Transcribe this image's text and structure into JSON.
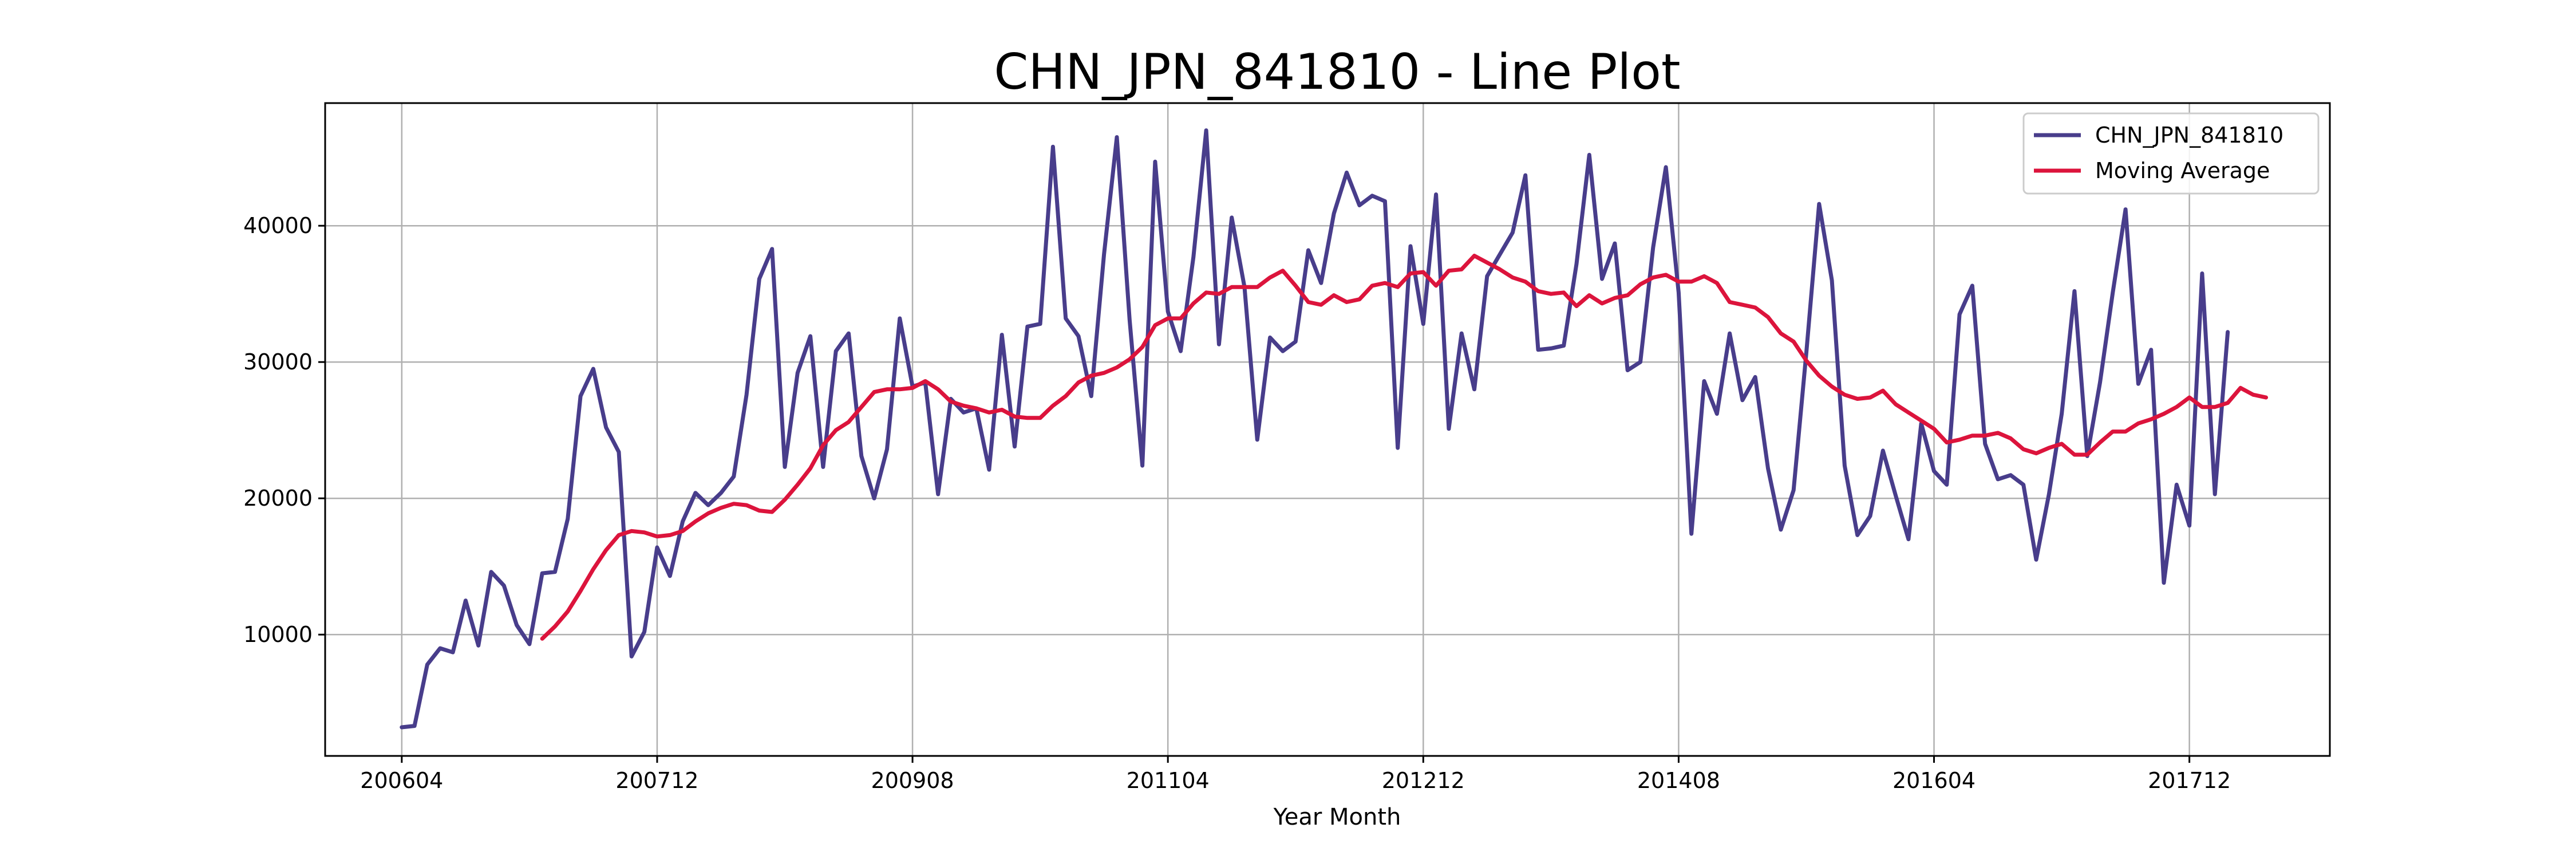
{
  "chart_data": {
    "type": "line",
    "title": "CHN_JPN_841810 - Line Plot",
    "xlabel": "Year Month",
    "ylabel": "",
    "x_tick_labels": [
      "200604",
      "200712",
      "200908",
      "201104",
      "201212",
      "201408",
      "201604",
      "201712"
    ],
    "x_tick_indices": [
      0,
      20,
      40,
      60,
      80,
      100,
      120,
      140
    ],
    "y_ticks": [
      10000,
      20000,
      30000,
      40000
    ],
    "y_tick_labels": [
      "10000",
      "20000",
      "30000",
      "40000"
    ],
    "xlim": [
      -6,
      151
    ],
    "ylim": [
      1100,
      49000
    ],
    "grid": true,
    "legend": "top-right",
    "series": [
      {
        "name": "CHN_JPN_841810",
        "color": "#483d8b",
        "start_index": 0,
        "values": [
          3200,
          3300,
          7800,
          9000,
          8700,
          12500,
          9200,
          14600,
          13600,
          10700,
          9300,
          14500,
          14600,
          18500,
          27500,
          29500,
          25200,
          23400,
          8400,
          10200,
          16400,
          14300,
          18300,
          20400,
          19500,
          20400,
          21600,
          27600,
          36100,
          38300,
          22300,
          29200,
          31900,
          22300,
          30800,
          32100,
          23100,
          20000,
          23600,
          33200,
          28200,
          28500,
          20300,
          27300,
          26300,
          26600,
          22100,
          32000,
          23800,
          32600,
          32800,
          45800,
          33200,
          31900,
          27500,
          37900,
          46500,
          33100,
          22400,
          44700,
          33700,
          30800,
          37700,
          47000,
          31300,
          40600,
          35500,
          24300,
          31800,
          30800,
          31500,
          38200,
          35800,
          40900,
          43900,
          41500,
          42200,
          41800,
          23700,
          38500,
          32800,
          42300,
          25100,
          32100,
          28000,
          36300,
          37900,
          39500,
          43700,
          30900,
          31000,
          31200,
          37200,
          45200,
          36100,
          38700,
          29400,
          30000,
          38400,
          44300,
          35100,
          17400,
          28600,
          26200,
          32100,
          27200,
          28900,
          22200,
          17700,
          20600,
          30700,
          41600,
          36000,
          22400,
          17300,
          18700,
          23500,
          20200,
          17000,
          25500,
          22000,
          21000,
          33500,
          35600,
          24000,
          21400,
          21700,
          21000,
          15500,
          20300,
          26200,
          35200,
          23100,
          28500,
          35100,
          41200,
          28400,
          30900,
          13800,
          21000,
          18000,
          36500,
          20300,
          32200
        ]
      },
      {
        "name": "Moving Average",
        "color": "#dc143c",
        "start_index": 11,
        "values": [
          9700,
          10600,
          11700,
          13200,
          14800,
          16200,
          17300,
          17600,
          17500,
          17200,
          17300,
          17600,
          18300,
          18900,
          19300,
          19600,
          19500,
          19100,
          19000,
          19900,
          21000,
          22200,
          23900,
          25000,
          25600,
          26700,
          27800,
          28000,
          28000,
          28100,
          28600,
          28000,
          27100,
          26800,
          26600,
          26300,
          26500,
          26000,
          25900,
          25900,
          26800,
          27500,
          28500,
          29000,
          29200,
          29600,
          30200,
          31100,
          32700,
          33200,
          33200,
          34300,
          35100,
          35000,
          35500,
          35500,
          35500,
          36200,
          36700,
          35600,
          34400,
          34200,
          34900,
          34400,
          34600,
          35600,
          35800,
          35500,
          36500,
          36600,
          35600,
          36700,
          36800,
          37800,
          37300,
          36800,
          36200,
          35900,
          35200,
          35000,
          35100,
          34100,
          34900,
          34300,
          34700,
          34900,
          35700,
          36200,
          36400,
          35900,
          35900,
          36300,
          35800,
          34400,
          34200,
          34000,
          33300,
          32100,
          31500,
          30100,
          29000,
          28200,
          27600,
          27300,
          27400,
          27900,
          26900,
          26300,
          25700,
          25100,
          24100,
          24300,
          24600,
          24600,
          24800,
          24400,
          23600,
          23300,
          23700,
          24000,
          23200,
          23200,
          24100,
          24900,
          24900,
          25500,
          25800,
          26200,
          26700,
          27400,
          26700,
          26700,
          27000,
          28100,
          27600,
          27400
        ]
      }
    ]
  }
}
